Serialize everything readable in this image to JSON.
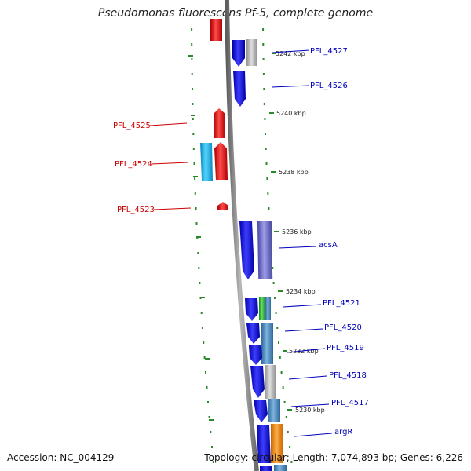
{
  "title": "Pseudomonas fluorescens Pf-5, complete genome",
  "footer": {
    "accession": "Accession: NC_004129",
    "summary": "Topology: circular; Length: 7,074,893 bp; Genes: 6,226"
  },
  "colors": {
    "backbone": "#8c8c8c",
    "tick": "#2a8a2a",
    "label_red": "#cc0000",
    "label_blue": "#0000bb",
    "red_gene": "#ee1111",
    "cyan_gene": "#22bbee",
    "blue_gene": "#1414dd",
    "slate_gene": "#7070cc",
    "gray_gene": "#bbbbbb",
    "steel_gene": "#4a8ac0",
    "green_gene": "#33bb33",
    "orange_gene": "#ff8c00"
  },
  "scale": [
    {
      "label": "5242 kbp"
    },
    {
      "label": "5240 kbp"
    },
    {
      "label": "5238 kbp"
    },
    {
      "label": "5236 kbp"
    },
    {
      "label": "5234 kbp"
    },
    {
      "label": "5232 kbp"
    },
    {
      "label": "5230 kbp"
    }
  ],
  "gene_labels": [
    {
      "text": "PFL_4527",
      "side": "right"
    },
    {
      "text": "PFL_4526",
      "side": "right"
    },
    {
      "text": "PFL_4525",
      "side": "left"
    },
    {
      "text": "PFL_4524",
      "side": "left"
    },
    {
      "text": "PFL_4523",
      "side": "left"
    },
    {
      "text": "acsA",
      "side": "right"
    },
    {
      "text": "PFL_4521",
      "side": "right"
    },
    {
      "text": "PFL_4520",
      "side": "right"
    },
    {
      "text": "PFL_4519",
      "side": "right"
    },
    {
      "text": "PFL_4518",
      "side": "right"
    },
    {
      "text": "PFL_4517",
      "side": "right"
    },
    {
      "text": "argR",
      "side": "right"
    }
  ]
}
